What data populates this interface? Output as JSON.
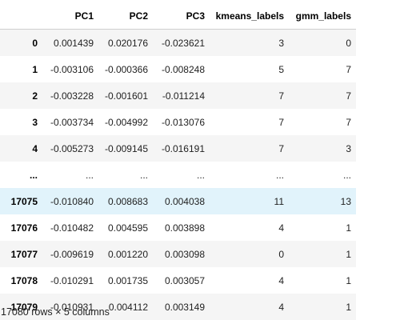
{
  "table": {
    "columns": [
      "",
      "PC1",
      "PC2",
      "PC3",
      "kmeans_labels",
      "gmm_labels"
    ],
    "rows": [
      {
        "index": "0",
        "cells": [
          "0.001439",
          "0.020176",
          "-0.023621",
          "3",
          "0"
        ]
      },
      {
        "index": "1",
        "cells": [
          "-0.003106",
          "-0.000366",
          "-0.008248",
          "5",
          "7"
        ]
      },
      {
        "index": "2",
        "cells": [
          "-0.003228",
          "-0.001601",
          "-0.011214",
          "7",
          "7"
        ]
      },
      {
        "index": "3",
        "cells": [
          "-0.003734",
          "-0.004992",
          "-0.013076",
          "7",
          "7"
        ]
      },
      {
        "index": "4",
        "cells": [
          "-0.005273",
          "-0.009145",
          "-0.016191",
          "7",
          "3"
        ]
      },
      {
        "index": "...",
        "cells": [
          "...",
          "...",
          "...",
          "...",
          "..."
        ]
      },
      {
        "index": "17075",
        "cells": [
          "-0.010840",
          "0.008683",
          "0.004038",
          "11",
          "13"
        ]
      },
      {
        "index": "17076",
        "cells": [
          "-0.010482",
          "0.004595",
          "0.003898",
          "4",
          "1"
        ]
      },
      {
        "index": "17077",
        "cells": [
          "-0.009619",
          "0.001220",
          "0.003098",
          "0",
          "1"
        ]
      },
      {
        "index": "17078",
        "cells": [
          "-0.010291",
          "0.001735",
          "0.003057",
          "4",
          "1"
        ]
      },
      {
        "index": "17079",
        "cells": [
          "-0.010931",
          "0.004112",
          "0.003149",
          "4",
          "1"
        ]
      }
    ],
    "hovered_row": 6
  },
  "shape_text": "17080 rows × 5 columns"
}
